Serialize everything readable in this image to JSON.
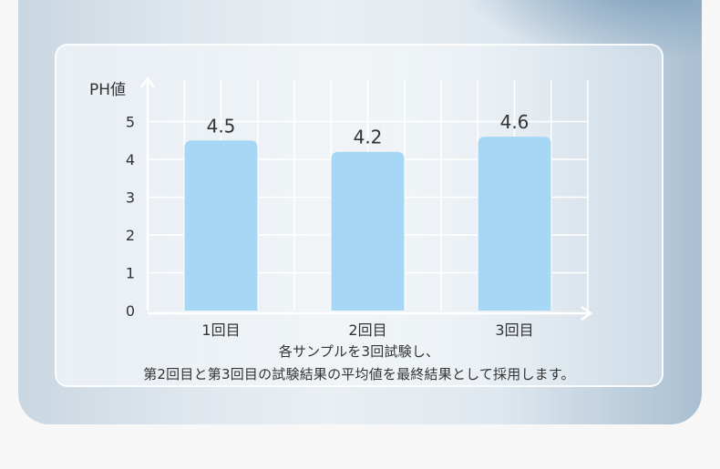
{
  "chart_data": {
    "type": "bar",
    "categories": [
      "1回目",
      "2回目",
      "3回目"
    ],
    "values": [
      4.5,
      4.2,
      4.6
    ],
    "data_labels": [
      "4.5",
      "4.2",
      "4.6"
    ],
    "ylabel": "PH値",
    "yticks": [
      "0",
      "1",
      "2",
      "3",
      "4",
      "5"
    ],
    "ylim": [
      0,
      5.5
    ],
    "grid": true,
    "bar_color": "#a6d7f4"
  },
  "caption": {
    "line1": "各サンプルを3回試験し、",
    "line2": "第2回目と第3回目の試験結果の平均値を最終結果として採用します。"
  }
}
